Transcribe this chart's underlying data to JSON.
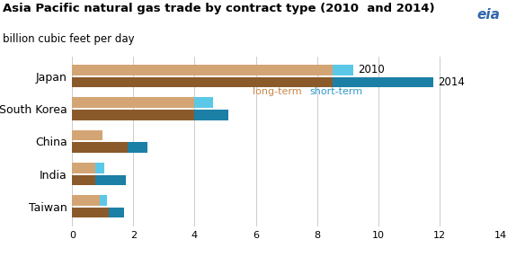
{
  "title": "Asia Pacific natural gas trade by contract type (2010  and 2014)",
  "subtitle": "billion cubic feet per day",
  "categories": [
    "Japan",
    "South Korea",
    "China",
    "India",
    "Taiwan"
  ],
  "long_term_2010": [
    8.5,
    4.0,
    1.0,
    0.75,
    0.9
  ],
  "short_term_2010": [
    0.7,
    0.6,
    0.0,
    0.3,
    0.25
  ],
  "long_term_2014": [
    8.5,
    4.0,
    1.8,
    0.75,
    1.2
  ],
  "short_term_2014": [
    3.3,
    1.1,
    0.65,
    1.0,
    0.5
  ],
  "color_long_term_2010": "#D4A574",
  "color_short_term_2010": "#5BC8E8",
  "color_long_term_2014": "#8B5A2B",
  "color_short_term_2014": "#1B7FA6",
  "xlim": [
    0,
    14
  ],
  "xticks": [
    0,
    2,
    4,
    6,
    8,
    10,
    12,
    14
  ],
  "year_2010_label": "2010",
  "year_2014_label": "2014",
  "legend_longterm_color": "#C8874A",
  "legend_shortterm_color": "#3399CC",
  "background_color": "#FFFFFF"
}
